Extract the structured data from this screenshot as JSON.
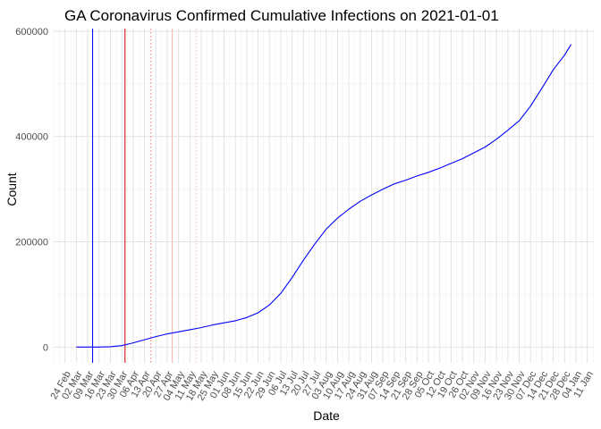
{
  "chart_data": {
    "type": "line",
    "title": "GA Coronavirus Confirmed Cumulative Infections on 2021-01-01",
    "xlabel": "Date",
    "ylabel": "Count",
    "year": 2020,
    "xlim": [
      "2020-02-17",
      "2021-01-15"
    ],
    "ylim": [
      -30000,
      605000
    ],
    "yticks": [
      0,
      200000,
      400000,
      600000
    ],
    "ytick_labels": [
      "0",
      "200000",
      "400000",
      "600000"
    ],
    "xticks": [
      "2020-02-24",
      "2020-03-02",
      "2020-03-09",
      "2020-03-16",
      "2020-03-23",
      "2020-03-30",
      "2020-04-06",
      "2020-04-13",
      "2020-04-20",
      "2020-04-27",
      "2020-05-04",
      "2020-05-11",
      "2020-05-18",
      "2020-05-25",
      "2020-06-01",
      "2020-06-08",
      "2020-06-15",
      "2020-06-22",
      "2020-06-29",
      "2020-07-06",
      "2020-07-13",
      "2020-07-20",
      "2020-07-27",
      "2020-08-03",
      "2020-08-10",
      "2020-08-17",
      "2020-08-24",
      "2020-08-31",
      "2020-09-07",
      "2020-09-14",
      "2020-09-21",
      "2020-09-28",
      "2020-10-05",
      "2020-10-12",
      "2020-10-19",
      "2020-10-26",
      "2020-11-02",
      "2020-11-09",
      "2020-11-16",
      "2020-11-23",
      "2020-11-30",
      "2020-12-07",
      "2020-12-14",
      "2020-12-21",
      "2020-12-28",
      "2021-01-04",
      "2021-01-11"
    ],
    "xtick_labels": [
      "24 Feb",
      "02 Mar",
      "09 Mar",
      "16 Mar",
      "23 Mar",
      "30 Mar",
      "06 Apr",
      "13 Apr",
      "20 Apr",
      "27 Apr",
      "04 May",
      "11 May",
      "18 May",
      "25 May",
      "01 Jun",
      "08 Jun",
      "15 Jun",
      "22 Jun",
      "29 Jun",
      "06 Jul",
      "13 Jul",
      "20 Jul",
      "27 Jul",
      "03 Aug",
      "10 Aug",
      "17 Aug",
      "24 Aug",
      "31 Aug",
      "07 Sep",
      "14 Sep",
      "21 Sep",
      "28 Sep",
      "05 Oct",
      "12 Oct",
      "19 Oct",
      "26 Oct",
      "02 Nov",
      "09 Nov",
      "16 Nov",
      "23 Nov",
      "30 Nov",
      "07 Dec",
      "14 Dec",
      "21 Dec",
      "28 Dec",
      "04 Jan",
      "11 Jan"
    ],
    "grid": true,
    "series": [
      {
        "color": "#0000ff",
        "x": [
          "2020-03-02",
          "2020-03-09",
          "2020-03-16",
          "2020-03-23",
          "2020-03-30",
          "2020-04-06",
          "2020-04-13",
          "2020-04-20",
          "2020-04-27",
          "2020-05-04",
          "2020-05-11",
          "2020-05-18",
          "2020-05-25",
          "2020-06-01",
          "2020-06-08",
          "2020-06-15",
          "2020-06-22",
          "2020-06-29",
          "2020-07-06",
          "2020-07-13",
          "2020-07-20",
          "2020-07-27",
          "2020-08-03",
          "2020-08-10",
          "2020-08-17",
          "2020-08-24",
          "2020-08-31",
          "2020-09-07",
          "2020-09-14",
          "2020-09-21",
          "2020-09-28",
          "2020-10-05",
          "2020-10-12",
          "2020-10-19",
          "2020-10-26",
          "2020-11-02",
          "2020-11-09",
          "2020-11-16",
          "2020-11-23",
          "2020-11-30",
          "2020-12-07",
          "2020-12-14",
          "2020-12-21",
          "2020-12-28",
          "2021-01-01"
        ],
        "y": [
          0,
          0,
          100,
          800,
          2800,
          8000,
          14000,
          20000,
          25000,
          29000,
          33000,
          37000,
          42000,
          46000,
          50000,
          56000,
          65000,
          80000,
          102000,
          132000,
          165000,
          196000,
          224000,
          245000,
          262000,
          277000,
          289000,
          300000,
          310000,
          317000,
          325000,
          332000,
          340000,
          349000,
          358000,
          369000,
          380000,
          395000,
          412000,
          430000,
          458000,
          492000,
          527000,
          555000,
          575000
        ]
      }
    ],
    "vlines": [
      {
        "x": "2020-03-12",
        "ymin": -30000,
        "ymax": 605000,
        "color": "#0000ff",
        "style": "solid"
      },
      {
        "x": "2020-04-01",
        "ymin": -30000,
        "ymax": 605000,
        "color": "#cc0000",
        "style": "solid"
      },
      {
        "x": "2020-04-17",
        "ymin": -30000,
        "ymax": 605000,
        "color": "#ee7777",
        "style": "dotted"
      },
      {
        "x": "2020-04-30",
        "ymin": -30000,
        "ymax": 605000,
        "color": "#f6b6b6",
        "style": "solid"
      },
      {
        "x": "2020-05-15",
        "ymin": -30000,
        "ymax": 605000,
        "color": "#f6c6c6",
        "style": "dotted"
      }
    ]
  }
}
